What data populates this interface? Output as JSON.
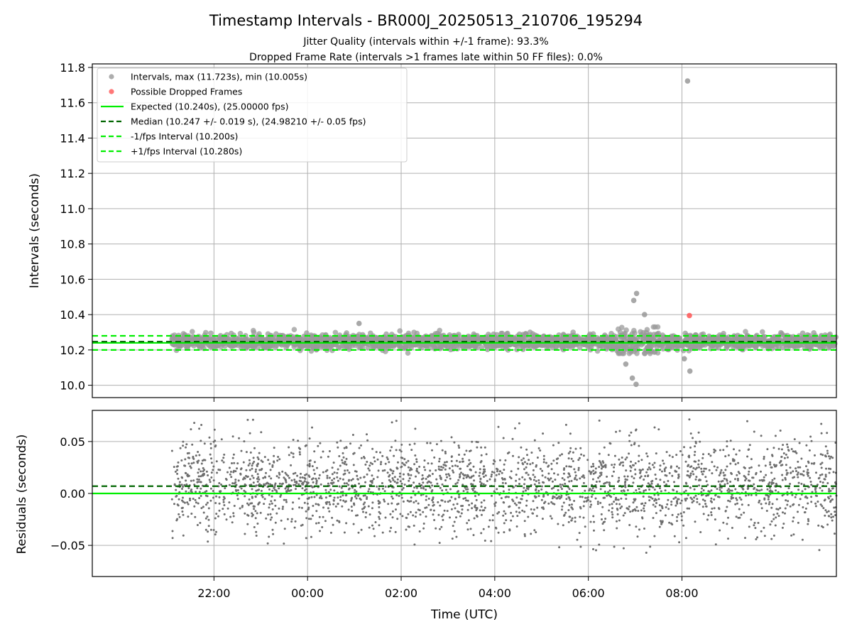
{
  "chart_data": {
    "title": "Timestamp Intervals - BR000J_20250513_210706_195294",
    "subtitle_lines": [
      "Jitter Quality (intervals within +/-1 frame): 93.3%",
      "Dropped Frame Rate (intervals >1 frames late within 50 FF files): 0.0%"
    ],
    "x_axis": {
      "label": "Time (UTC)",
      "tick_labels": [
        "22:00",
        "00:00",
        "02:00",
        "04:00",
        "06:00",
        "08:00"
      ],
      "tick_hours_from_start": [
        2,
        4,
        6,
        8,
        10,
        12
      ],
      "range_hours": [
        -0.6,
        15.3
      ]
    },
    "panels": [
      {
        "type": "scatter",
        "ylabel": "Intervals (seconds)",
        "ylim": [
          9.93,
          11.82
        ],
        "yticks": [
          10.0,
          10.2,
          10.4,
          10.6,
          10.8,
          11.0,
          11.2,
          11.4,
          11.6,
          11.8
        ],
        "ytick_labels": [
          "10.0",
          "10.2",
          "10.4",
          "10.6",
          "10.8",
          "11.0",
          "11.2",
          "11.4",
          "11.6",
          "11.8"
        ],
        "grid": true,
        "legend_position": "top-left",
        "legend": [
          {
            "label": "Intervals, max (11.723s), min (10.005s)",
            "kind": "dot",
            "color": "#999999"
          },
          {
            "label": "Possible Dropped Frames",
            "kind": "dot",
            "color": "#ff5555"
          },
          {
            "label": "Expected (10.240s), (25.00000 fps)",
            "kind": "line",
            "color": "#00ee00",
            "dash": false
          },
          {
            "label": "Median (10.247 +/- 0.019 s), (24.98210 +/- 0.05 fps)",
            "kind": "line",
            "color": "#006400",
            "dash": true
          },
          {
            "label": "-1/fps Interval (10.200s)",
            "kind": "line",
            "color": "#00ee00",
            "dash": true
          },
          {
            "label": "+1/fps Interval (10.280s)",
            "kind": "line",
            "color": "#00ee00",
            "dash": true
          }
        ],
        "reference_lines": [
          {
            "name": "expected",
            "y": 10.24,
            "color": "#00ee00",
            "dash": false
          },
          {
            "name": "median",
            "y": 10.247,
            "color": "#006400",
            "dash": true
          },
          {
            "name": "minus_one_frame",
            "y": 10.2,
            "color": "#00ee00",
            "dash": true
          },
          {
            "name": "plus_one_frame",
            "y": 10.28,
            "color": "#00ee00",
            "dash": true
          }
        ],
        "bulk_series": {
          "x_hours_range": [
            1.1,
            15.3
          ],
          "y_median": 10.247,
          "y_spread": 0.019,
          "color": "#999999"
        },
        "notable_points": [
          {
            "x_hours": 12.12,
            "y": 11.723,
            "color": "#999999"
          },
          {
            "x_hours": 12.16,
            "y": 10.395,
            "color": "#ff5555"
          },
          {
            "x_hours": 11.03,
            "y": 10.52,
            "color": "#999999"
          },
          {
            "x_hours": 10.97,
            "y": 10.48,
            "color": "#999999"
          },
          {
            "x_hours": 11.02,
            "y": 10.005,
            "color": "#999999"
          },
          {
            "x_hours": 10.94,
            "y": 10.04,
            "color": "#999999"
          },
          {
            "x_hours": 12.17,
            "y": 10.08,
            "color": "#999999"
          },
          {
            "x_hours": 5.1,
            "y": 10.35,
            "color": "#999999"
          },
          {
            "x_hours": 10.8,
            "y": 10.12,
            "color": "#999999"
          },
          {
            "x_hours": 11.2,
            "y": 10.4,
            "color": "#999999"
          },
          {
            "x_hours": 12.05,
            "y": 10.15,
            "color": "#999999"
          }
        ]
      },
      {
        "type": "scatter",
        "ylabel": "Residuals (seconds)",
        "ylim": [
          -0.08,
          0.08
        ],
        "yticks": [
          -0.05,
          0.0,
          0.05
        ],
        "ytick_labels": [
          "−0.05",
          "0.00",
          "0.05"
        ],
        "grid": true,
        "reference_lines": [
          {
            "name": "expected",
            "y": 0.0,
            "color": "#00ee00",
            "dash": false
          },
          {
            "name": "median",
            "y": 0.007,
            "color": "#006400",
            "dash": true
          }
        ],
        "bulk_series": {
          "x_hours_range": [
            1.1,
            15.3
          ],
          "y_center": 0.007,
          "y_spread": 0.022,
          "color": "#6e6e6e"
        }
      }
    ]
  }
}
